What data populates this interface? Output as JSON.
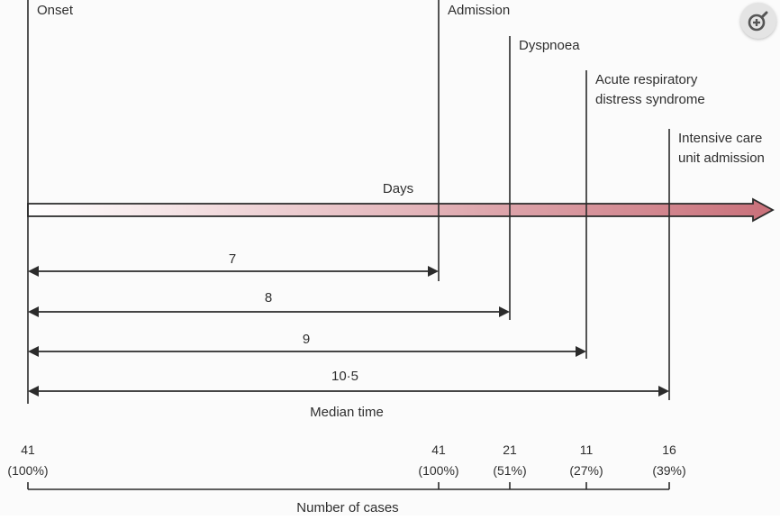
{
  "diagram": {
    "events": [
      {
        "label_lines": [
          "Onset"
        ]
      },
      {
        "label_lines": [
          "Admission"
        ]
      },
      {
        "label_lines": [
          "Dyspnoea"
        ]
      },
      {
        "label_lines": [
          "Acute respiratory",
          "distress syndrome"
        ]
      },
      {
        "label_lines": [
          "Intensive care",
          "unit admission"
        ]
      }
    ],
    "axis_label": "Days",
    "durations": [
      {
        "label": "7"
      },
      {
        "label": "8"
      },
      {
        "label": "9"
      },
      {
        "label": "10·5"
      }
    ],
    "duration_caption": "Median time",
    "cases": [
      {
        "count": "41",
        "percent": "(100%)"
      },
      {
        "count": "41",
        "percent": "(100%)"
      },
      {
        "count": "21",
        "percent": "(51%)"
      },
      {
        "count": "11",
        "percent": "(27%)"
      },
      {
        "count": "16",
        "percent": "(39%)"
      }
    ],
    "cases_caption": "Number of cases",
    "colors": {
      "arrow_start": "#ffffff",
      "arrow_end": "#c9707a",
      "line": "#2b2b2b"
    }
  },
  "toolbar": {
    "zoom_icon": "zoom-in-icon"
  }
}
